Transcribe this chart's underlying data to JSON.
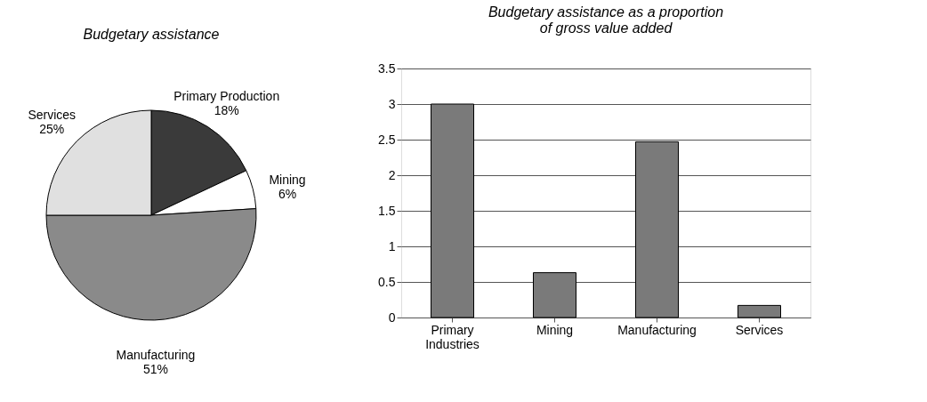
{
  "chart_data": [
    {
      "type": "pie",
      "title": "Budgetary assistance",
      "categories": [
        "Primary Production",
        "Mining",
        "Manufacturing",
        "Services"
      ],
      "values": [
        18,
        6,
        51,
        25
      ],
      "value_labels": [
        "18%",
        "6%",
        "51%",
        "25%"
      ],
      "colors": [
        "#3a3a3a",
        "#ffffff",
        "#8a8a8a",
        "#e0e0e0"
      ],
      "legend": false
    },
    {
      "type": "bar",
      "title": "Budgetary assistance as a proportion of gross value added",
      "categories": [
        "Primary Industries",
        "Mining",
        "Manufacturing",
        "Services"
      ],
      "values": [
        3.0,
        0.63,
        2.47,
        0.17
      ],
      "color": "#7a7a7a",
      "ylim": [
        0,
        3.5
      ],
      "yticks": [
        0,
        0.5,
        1,
        1.5,
        2,
        2.5,
        3,
        3.5
      ],
      "grid": "y"
    }
  ]
}
